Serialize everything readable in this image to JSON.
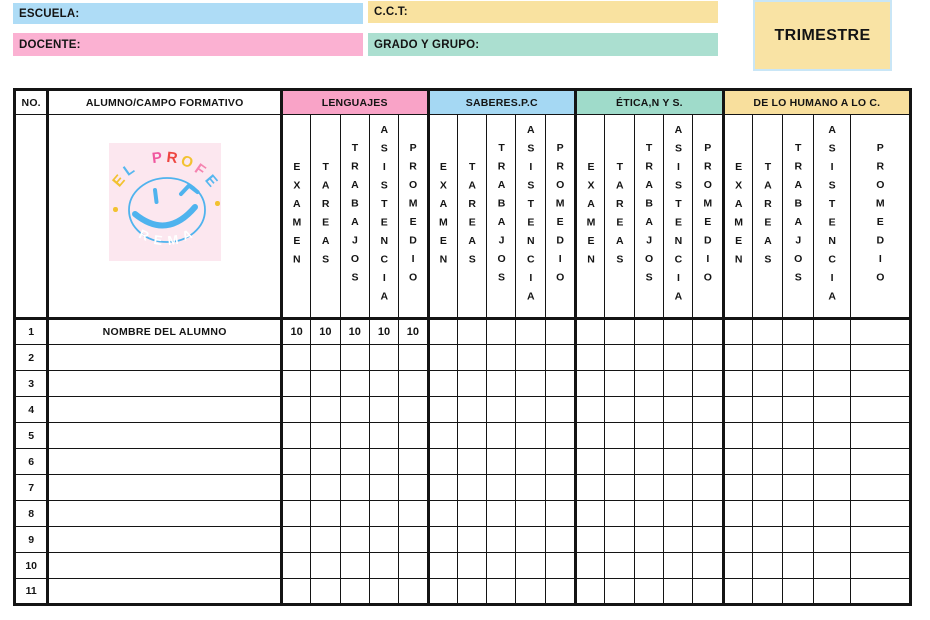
{
  "top_fields": {
    "escuela": {
      "label": "ESCUELA:",
      "value": "",
      "color": "#aedcf6"
    },
    "cct": {
      "label": "C.C.T:",
      "value": "",
      "color": "#f9e2a0"
    },
    "docente": {
      "label": "DOCENTE:",
      "value": "",
      "color": "#fbb1d2"
    },
    "grado": {
      "label": "GRADO Y GRUPO:",
      "value": "",
      "color": "#abdfd0"
    }
  },
  "trimestre": {
    "label": "TRIMESTRE",
    "color": "#f9e3a4"
  },
  "table": {
    "no_header": "NO.",
    "alumno_header": "ALUMNO/CAMPO FORMATIVO",
    "sections": [
      {
        "label": "LENGUAJES",
        "color": "#f9a3c7"
      },
      {
        "label": "SABERES.P.C",
        "color": "#a5d8f3"
      },
      {
        "label": "ÉTICA,N Y S.",
        "color": "#9fdbca"
      },
      {
        "label": "DE LO HUMANO A LO C.",
        "color": "#f8df9d"
      }
    ],
    "sub_columns": [
      "EXAMEN",
      "TAREAS",
      "TRABAJOS",
      "ASISTENCIA",
      "PROMEDIO"
    ],
    "rows": [
      {
        "no": "1",
        "name": "NOMBRE DEL ALUMNO",
        "scores": [
          "10",
          "10",
          "10",
          "10",
          "10",
          "",
          "",
          "",
          "",
          "",
          "",
          "",
          "",
          "",
          "",
          "",
          "",
          "",
          "",
          ""
        ]
      },
      {
        "no": "2",
        "name": "",
        "scores": []
      },
      {
        "no": "3",
        "name": "",
        "scores": []
      },
      {
        "no": "4",
        "name": "",
        "scores": []
      },
      {
        "no": "5",
        "name": "",
        "scores": []
      },
      {
        "no": "6",
        "name": "",
        "scores": []
      },
      {
        "no": "7",
        "name": "",
        "scores": []
      },
      {
        "no": "8",
        "name": "",
        "scores": []
      },
      {
        "no": "9",
        "name": "",
        "scores": []
      },
      {
        "no": "10",
        "name": "",
        "scores": []
      },
      {
        "no": "11",
        "name": "",
        "scores": []
      }
    ]
  },
  "logo": {
    "background": "#fce7ef",
    "face_color": "#4fb3ee",
    "dot_color": "#f2c230",
    "top_text": "EL PROFE",
    "bottom_text": "REMA",
    "top_letters": [
      {
        "ch": "E",
        "color": "#f2c230"
      },
      {
        "ch": "L",
        "color": "#56b7ef"
      },
      {
        "ch": " ",
        "color": "#000000"
      },
      {
        "ch": "P",
        "color": "#f0579f"
      },
      {
        "ch": "R",
        "color": "#ee4540"
      },
      {
        "ch": "O",
        "color": "#f2c230"
      },
      {
        "ch": "F",
        "color": "#f584b0"
      },
      {
        "ch": "E",
        "color": "#56b7ef"
      }
    ],
    "bottom_letters": [
      {
        "ch": "R",
        "color": "#ffffff"
      },
      {
        "ch": "E",
        "color": "#ffffff"
      },
      {
        "ch": "M",
        "color": "#ffffff"
      },
      {
        "ch": "A",
        "color": "#ffffff"
      }
    ]
  }
}
